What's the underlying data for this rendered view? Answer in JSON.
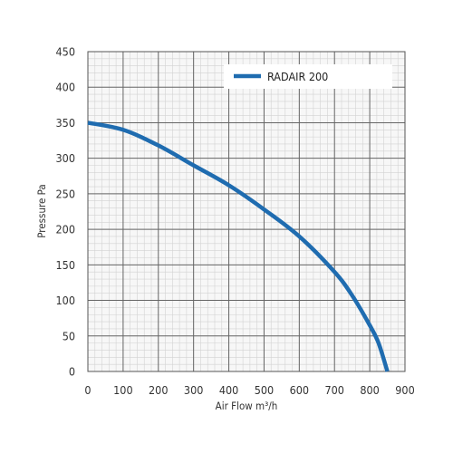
{
  "chart_data": {
    "type": "line",
    "xlabel": "Air Flow m³/h",
    "ylabel": "Pressure Pa",
    "xlim": [
      0,
      900
    ],
    "ylim": [
      0,
      450
    ],
    "x_ticks": [
      0,
      100,
      200,
      300,
      400,
      500,
      600,
      700,
      800,
      900
    ],
    "y_ticks": [
      0,
      50,
      100,
      150,
      200,
      250,
      300,
      350,
      400,
      450
    ],
    "grid": true,
    "minor_grid": true,
    "legend_position": "top-right",
    "series": [
      {
        "name": "RADAIR 200",
        "color": "#1f6cb0",
        "points": [
          [
            0,
            350
          ],
          [
            100,
            340
          ],
          [
            200,
            318
          ],
          [
            300,
            290
          ],
          [
            400,
            262
          ],
          [
            500,
            228
          ],
          [
            600,
            190
          ],
          [
            700,
            140
          ],
          [
            750,
            107
          ],
          [
            800,
            65
          ],
          [
            825,
            40
          ],
          [
            850,
            0
          ]
        ]
      }
    ]
  }
}
